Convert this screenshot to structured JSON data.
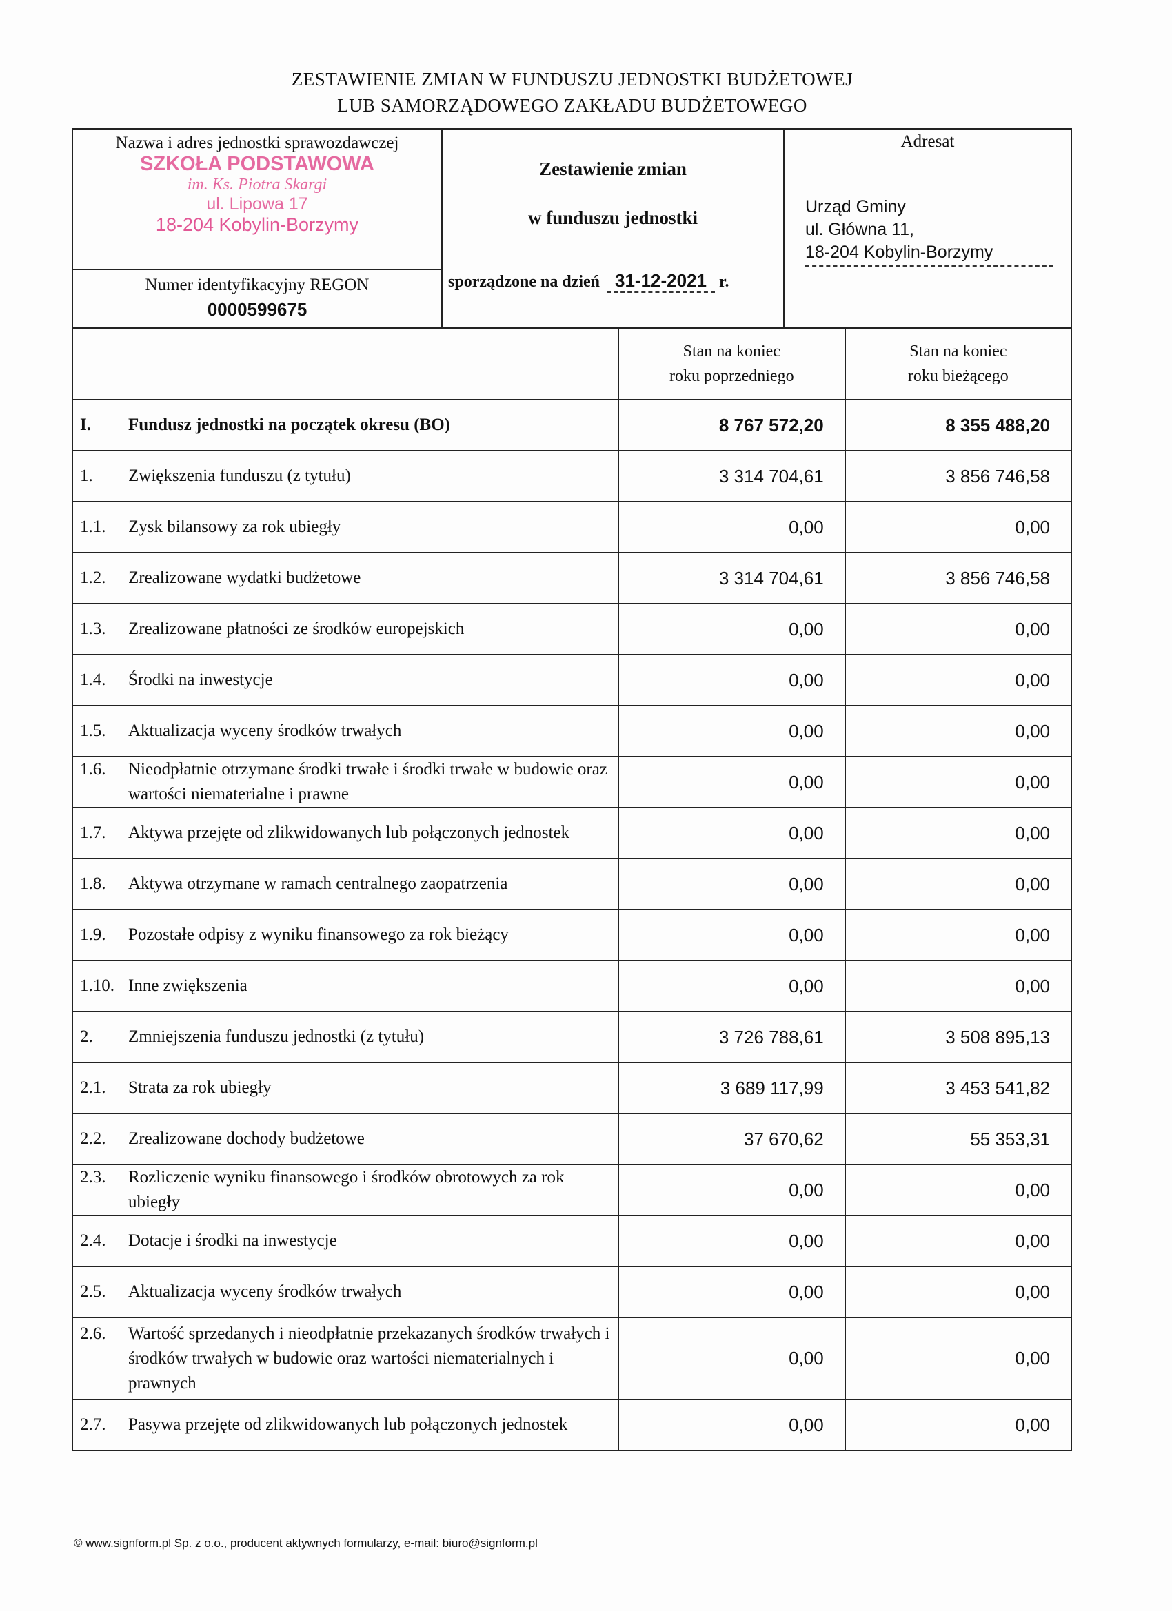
{
  "title": {
    "line1": "ZESTAWIENIE ZMIAN W FUNDUSZU JEDNOSTKI BUDŻETOWEJ",
    "line2": "LUB SAMORZĄDOWEGO ZAKŁADU BUDŻETOWEGO"
  },
  "header": {
    "unit_label": "Nazwa i adres jednostki sprawozdawczej",
    "stamp": {
      "line1": "SZKOŁA PODSTAWOWA",
      "line2": "im. Ks. Piotra Skargi",
      "line3": "ul. Lipowa 17",
      "line4": "18-204 Kobylin-Borzymy",
      "color": "#e0468a"
    },
    "regon_label": "Numer identyfikacyjny REGON",
    "regon": "0000599675",
    "doc_title1": "Zestawienie zmian",
    "doc_title2": "w funduszu jednostki",
    "date_label": "sporządzone na dzień",
    "date": "31-12-2021",
    "date_suffix": "r.",
    "addressee_label": "Adresat",
    "addressee": {
      "line1": "Urząd Gminy",
      "line2": "ul. Główna 11,",
      "line3": "18-204 Kobylin-Borzymy"
    }
  },
  "table": {
    "col_prev": {
      "line1": "Stan na koniec",
      "line2": "roku poprzedniego"
    },
    "col_curr": {
      "line1": "Stan na koniec",
      "line2": "roku bieżącego"
    },
    "rows": [
      {
        "no": "I.",
        "label": "Fundusz jednostki na początek okresu (BO)",
        "prev": "8 767 572,20",
        "curr": "8 355 488,20",
        "bold": true
      },
      {
        "no": "1.",
        "label": "Zwiększenia funduszu (z tytułu)",
        "prev": "3 314 704,61",
        "curr": "3 856 746,58"
      },
      {
        "no": "1.1.",
        "label": "Zysk bilansowy za rok ubiegły",
        "prev": "0,00",
        "curr": "0,00"
      },
      {
        "no": "1.2.",
        "label": "Zrealizowane wydatki budżetowe",
        "prev": "3 314 704,61",
        "curr": "3 856 746,58"
      },
      {
        "no": "1.3.",
        "label": "Zrealizowane płatności ze środków europejskich",
        "prev": "0,00",
        "curr": "0,00"
      },
      {
        "no": "1.4.",
        "label": "Środki na inwestycje",
        "prev": "0,00",
        "curr": "0,00"
      },
      {
        "no": "1.5.",
        "label": "Aktualizacja wyceny środków trwałych",
        "prev": "0,00",
        "curr": "0,00"
      },
      {
        "no": "1.6.",
        "label": "Nieodpłatnie otrzymane środki trwałe i środki trwałe w budowie oraz wartości niematerialne i prawne",
        "prev": "0,00",
        "curr": "0,00"
      },
      {
        "no": "1.7.",
        "label": "Aktywa przejęte od zlikwidowanych lub połączonych jednostek",
        "prev": "0,00",
        "curr": "0,00"
      },
      {
        "no": "1.8.",
        "label": "Aktywa otrzymane w ramach centralnego zaopatrzenia",
        "prev": "0,00",
        "curr": "0,00"
      },
      {
        "no": "1.9.",
        "label": "Pozostałe odpisy z wyniku finansowego za rok bieżący",
        "prev": "0,00",
        "curr": "0,00"
      },
      {
        "no": "1.10.",
        "label": "Inne zwiększenia",
        "prev": "0,00",
        "curr": "0,00"
      },
      {
        "no": "2.",
        "label": "Zmniejszenia funduszu jednostki (z tytułu)",
        "prev": "3 726 788,61",
        "curr": "3 508 895,13"
      },
      {
        "no": "2.1.",
        "label": "Strata za rok ubiegły",
        "prev": "3 689 117,99",
        "curr": "3 453 541,82"
      },
      {
        "no": "2.2.",
        "label": "Zrealizowane dochody budżetowe",
        "prev": "37 670,62",
        "curr": "55 353,31"
      },
      {
        "no": "2.3.",
        "label": "Rozliczenie wyniku finansowego i środków obrotowych za rok ubiegły",
        "prev": "0,00",
        "curr": "0,00"
      },
      {
        "no": "2.4.",
        "label": "Dotacje i środki na inwestycje",
        "prev": "0,00",
        "curr": "0,00"
      },
      {
        "no": "2.5.",
        "label": "Aktualizacja wyceny środków trwałych",
        "prev": "0,00",
        "curr": "0,00"
      },
      {
        "no": "2.6.",
        "label": "Wartość sprzedanych i nieodpłatnie przekazanych środków trwałych i środków trwałych w budowie oraz wartości niematerialnych i prawnych",
        "prev": "0,00",
        "curr": "0,00",
        "tall": true
      },
      {
        "no": "2.7.",
        "label": "Pasywa przejęte od zlikwidowanych lub połączonych jednostek",
        "prev": "0,00",
        "curr": "0,00"
      }
    ]
  },
  "footer": "© www.signform.pl Sp. z o.o., producent aktywnych formularzy, e-mail: biuro@signform.pl"
}
